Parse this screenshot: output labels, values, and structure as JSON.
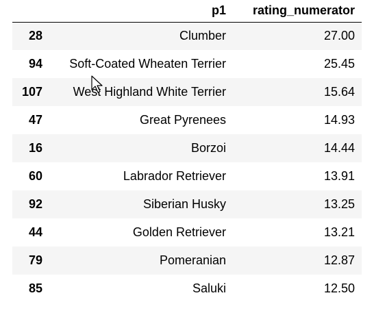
{
  "table": {
    "columns": {
      "index": "",
      "p1": "p1",
      "rating_numerator": "rating_numerator"
    },
    "rows": [
      {
        "index": "28",
        "p1": "Clumber",
        "rating_numerator": "27.00"
      },
      {
        "index": "94",
        "p1": "Soft-Coated Wheaten Terrier",
        "rating_numerator": "25.45"
      },
      {
        "index": "107",
        "p1": "West Highland White Terrier",
        "rating_numerator": "15.64"
      },
      {
        "index": "47",
        "p1": "Great Pyrenees",
        "rating_numerator": "14.93"
      },
      {
        "index": "16",
        "p1": "Borzoi",
        "rating_numerator": "14.44"
      },
      {
        "index": "60",
        "p1": "Labrador Retriever",
        "rating_numerator": "13.91"
      },
      {
        "index": "92",
        "p1": "Siberian Husky",
        "rating_numerator": "13.25"
      },
      {
        "index": "44",
        "p1": "Golden Retriever",
        "rating_numerator": "13.21"
      },
      {
        "index": "79",
        "p1": "Pomeranian",
        "rating_numerator": "12.87"
      },
      {
        "index": "85",
        "p1": "Saluki",
        "rating_numerator": "12.50"
      }
    ]
  },
  "cursor": {
    "icon": "mouse-pointer-icon"
  }
}
